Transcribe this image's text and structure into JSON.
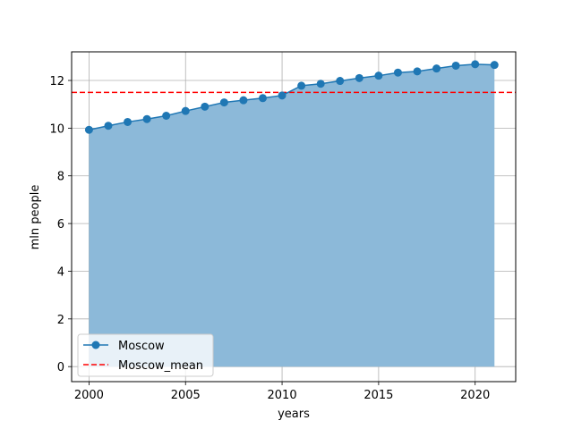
{
  "chart_data": {
    "type": "area",
    "xlabel": "years",
    "ylabel": "mln people",
    "xlim": [
      1999.1,
      2022.1
    ],
    "ylim": [
      -0.63,
      13.2
    ],
    "grid": true,
    "legend_position": "lower-left",
    "x_ticks": [
      2000,
      2005,
      2010,
      2015,
      2020
    ],
    "y_ticks": [
      0,
      2,
      4,
      6,
      8,
      10,
      12
    ],
    "x": [
      2000,
      2001,
      2002,
      2003,
      2004,
      2005,
      2006,
      2007,
      2008,
      2009,
      2010,
      2011,
      2012,
      2013,
      2014,
      2015,
      2016,
      2017,
      2018,
      2019,
      2020,
      2021
    ],
    "series": [
      {
        "name": "Moscow",
        "values": [
          9.93,
          10.1,
          10.26,
          10.38,
          10.52,
          10.72,
          10.9,
          11.08,
          11.17,
          11.26,
          11.37,
          11.78,
          11.86,
          11.98,
          12.1,
          12.2,
          12.33,
          12.38,
          12.5,
          12.62,
          12.68,
          12.65
        ],
        "color": "#1f77b4",
        "fill_color": "#8cb9d9",
        "marker": "circle"
      }
    ],
    "reference_lines": [
      {
        "name": "Moscow_mean",
        "value": 11.5,
        "color": "#ff0000",
        "style": "dashed"
      }
    ]
  }
}
